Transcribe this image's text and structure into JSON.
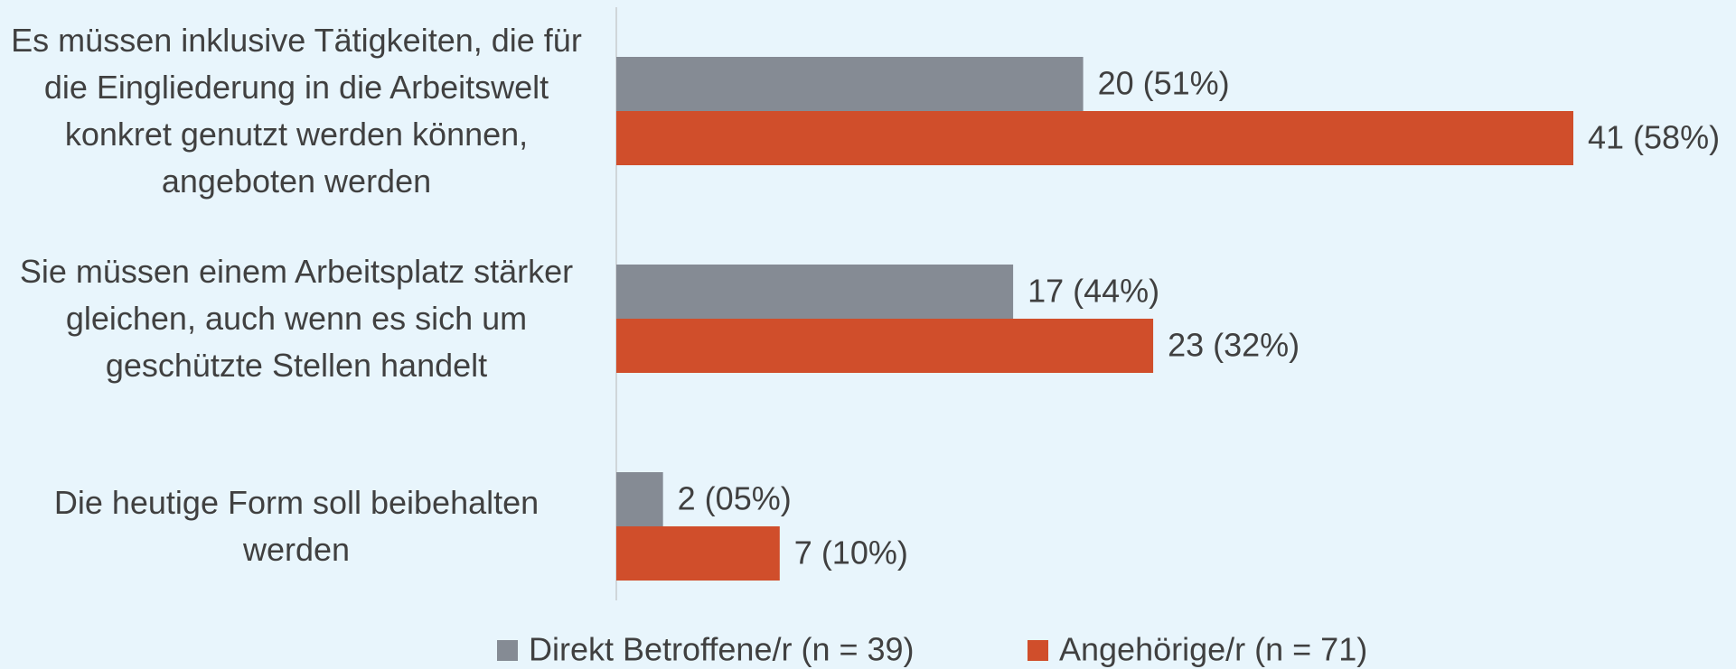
{
  "chart_data": {
    "type": "hbar",
    "categories": [
      "Es müssen inklusive Tätigkeiten, die für die Eingliederung in die Arbeitswelt konkret genutzt werden können, angeboten werden",
      "Sie müssen einem Arbeitsplatz stärker gleichen, auch wenn es sich um geschützte Stellen handelt",
      "Die heutige Form soll beibehalten werden"
    ],
    "series": [
      {
        "name": "Direkt Betroffene/r (n = 39)",
        "color": "#858b94",
        "values": [
          20,
          17,
          2
        ],
        "value_labels": [
          "20 (51%)",
          "17 (44%)",
          "2 (05%)"
        ]
      },
      {
        "name": "Angehörige/r (n = 71)",
        "color": "#d04e2b",
        "values": [
          41,
          23,
          7
        ],
        "value_labels": [
          "41 (58%)",
          "23 (32%)",
          "7 (10%)"
        ]
      }
    ],
    "legend": "bottom"
  }
}
